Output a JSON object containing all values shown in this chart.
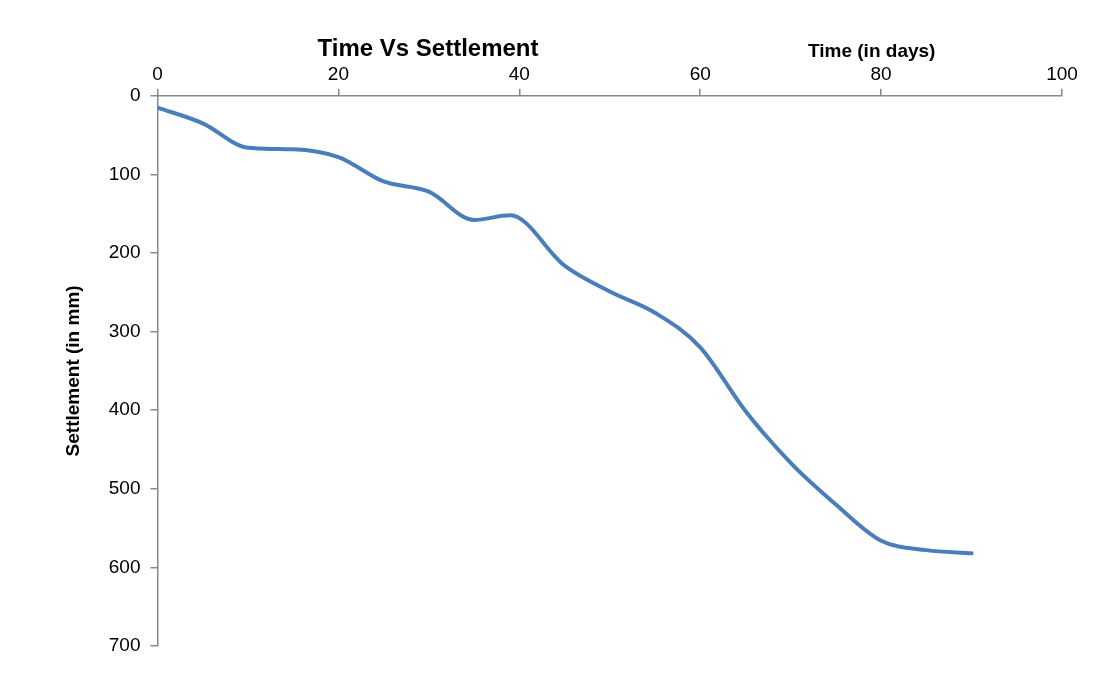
{
  "chart_data": {
    "type": "line",
    "title": "Time Vs Settlement",
    "xlabel": "Time (in days)",
    "ylabel": "Settlement (in mm)",
    "x": [
      0,
      5,
      10,
      15,
      20,
      25,
      30,
      35,
      39,
      45,
      50,
      55,
      60,
      65,
      70,
      75,
      80,
      85,
      90
    ],
    "series": [
      {
        "color": "#4a7ebb",
        "values": [
          15,
          35,
          66,
          68,
          78,
          109,
          122,
          158,
          152,
          216,
          249,
          276,
          320,
          401,
          467,
          520,
          566,
          578,
          582
        ]
      }
    ],
    "xlim": [
      0,
      100
    ],
    "xticks": [
      0,
      20,
      40,
      60,
      80,
      100
    ],
    "ylim": [
      700,
      0
    ],
    "yticks": [
      0,
      100,
      200,
      300,
      400,
      500,
      600,
      700
    ],
    "grid": false,
    "legend": false,
    "marker": "none",
    "line_style": "solid"
  }
}
